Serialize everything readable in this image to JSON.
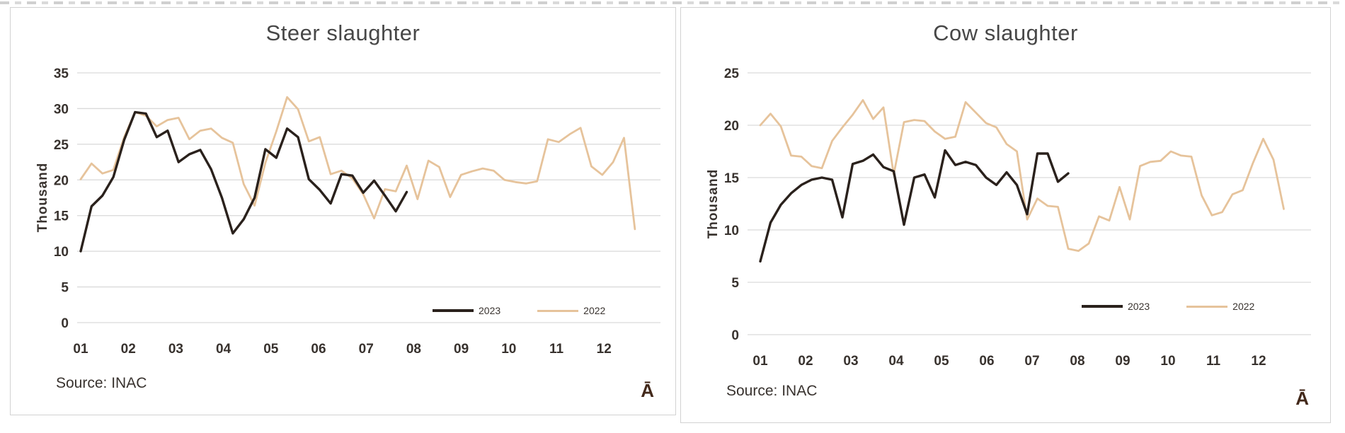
{
  "colors": {
    "series_2023": "#2a211c",
    "series_2022": "#e6c39b",
    "grid": "#d9d9d9",
    "axis_text": "#38322e",
    "title_text": "#474747",
    "corner_glyph": "#43291b",
    "panel_border": "#d2d2d2"
  },
  "chart_data": [
    {
      "type": "line",
      "title": "Steer slaughter",
      "ylabel": "Thousand",
      "xlabel": "",
      "ylim": [
        0,
        35
      ],
      "yticks": [
        0,
        5,
        10,
        15,
        20,
        25,
        30,
        35
      ],
      "x_months": [
        "01",
        "02",
        "03",
        "04",
        "05",
        "06",
        "07",
        "08",
        "09",
        "10",
        "11",
        "12"
      ],
      "x_unit": "week-of-year",
      "grid": true,
      "legend_position": "bottom-right",
      "source": "Source: INAC",
      "corner_glyph": "Ā",
      "series": [
        {
          "name": "2023",
          "color": "#2a211c",
          "values": [
            10.0,
            16.3,
            17.8,
            20.4,
            25.6,
            29.5,
            29.3,
            26.0,
            26.9,
            22.5,
            23.6,
            24.2,
            21.5,
            17.5,
            12.5,
            14.5,
            17.5,
            24.3,
            23.1,
            27.2,
            26.0,
            20.1,
            18.6,
            16.7,
            20.8,
            20.6,
            18.2,
            19.9,
            17.8,
            15.6,
            18.3
          ]
        },
        {
          "name": "2022",
          "color": "#e6c39b",
          "values": [
            20.1,
            22.3,
            20.9,
            21.4,
            26.0,
            29.5,
            29.0,
            27.5,
            28.4,
            28.7,
            25.7,
            26.9,
            27.2,
            25.9,
            25.2,
            19.4,
            16.4,
            22.4,
            26.8,
            31.6,
            29.9,
            25.4,
            26.0,
            20.8,
            21.3,
            20.2,
            18.0,
            14.6,
            18.7,
            18.4,
            22.0,
            17.3,
            22.7,
            21.8,
            17.6,
            20.7,
            21.2,
            21.6,
            21.3,
            20.0,
            19.7,
            19.5,
            19.8,
            25.7,
            25.3,
            26.4,
            27.3,
            21.9,
            20.7,
            22.5,
            25.9,
            13.1
          ]
        }
      ]
    },
    {
      "type": "line",
      "title": "Cow slaughter",
      "ylabel": "Thousand",
      "xlabel": "",
      "ylim": [
        0,
        25
      ],
      "yticks": [
        0,
        5,
        10,
        15,
        20,
        25
      ],
      "x_months": [
        "01",
        "02",
        "03",
        "04",
        "05",
        "06",
        "07",
        "08",
        "09",
        "10",
        "11",
        "12"
      ],
      "x_unit": "week-of-year",
      "grid": true,
      "legend_position": "bottom-right",
      "source": "Source: INAC",
      "corner_glyph": "Ā",
      "series": [
        {
          "name": "2023",
          "color": "#2a211c",
          "values": [
            7.0,
            10.7,
            12.4,
            13.5,
            14.3,
            14.8,
            15.0,
            14.8,
            11.2,
            16.3,
            16.6,
            17.2,
            16.0,
            15.6,
            10.5,
            15.0,
            15.3,
            13.1,
            17.6,
            16.2,
            16.5,
            16.2,
            15.0,
            14.3,
            15.5,
            14.3,
            11.5,
            17.3,
            17.3,
            14.6,
            15.4
          ]
        },
        {
          "name": "2022",
          "color": "#e6c39b",
          "values": [
            20.0,
            21.1,
            19.9,
            17.1,
            17.0,
            16.1,
            15.9,
            18.5,
            19.8,
            21.0,
            22.4,
            20.6,
            21.7,
            15.3,
            20.3,
            20.5,
            20.4,
            19.4,
            18.7,
            18.9,
            22.2,
            21.2,
            20.2,
            19.8,
            18.2,
            17.5,
            11.0,
            13.0,
            12.3,
            12.2,
            8.2,
            8.0,
            8.7,
            11.3,
            10.9,
            14.1,
            11.0,
            16.1,
            16.5,
            16.6,
            17.5,
            17.1,
            17.0,
            13.3,
            11.4,
            11.7,
            13.4,
            13.8,
            16.4,
            18.7,
            16.7,
            12.0
          ]
        }
      ]
    }
  ]
}
